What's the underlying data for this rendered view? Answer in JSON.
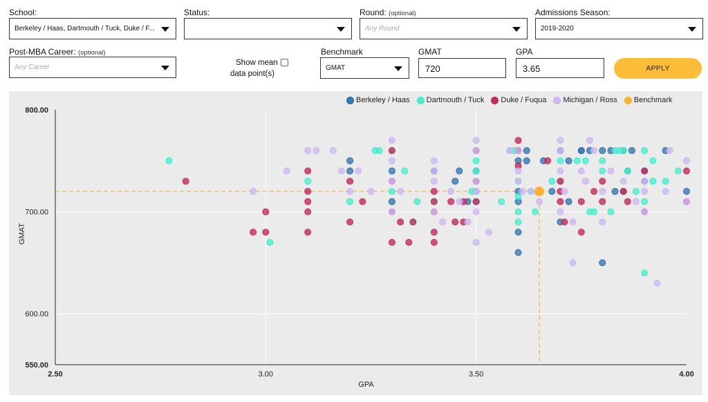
{
  "filters": {
    "school": {
      "label": "School:",
      "value": "Berkeley / Haas, Dartmouth / Tuck, Duke / F..."
    },
    "status": {
      "label": "Status:",
      "value": ""
    },
    "round": {
      "label": "Round:",
      "optional": "(optional)",
      "placeholder": "Any Round"
    },
    "season": {
      "label": "Admissions Season:",
      "value": "2019-2020"
    },
    "career": {
      "label": "Post-MBA Career:",
      "optional": "(optional)",
      "placeholder": "Any Career"
    },
    "show_mean": {
      "line1": "Show mean",
      "line2": "data point(s)"
    },
    "benchmark": {
      "label": "Benchmark",
      "value": "GMAT"
    },
    "gmat": {
      "label": "GMAT",
      "value": "720"
    },
    "gpa": {
      "label": "GPA",
      "value": "3.65"
    },
    "apply_label": "APPLY"
  },
  "colors": {
    "haas": "#1f5f9e",
    "tuck": "#3fe6c3",
    "fuqua": "#c21e58",
    "ross": "#c9b1f2",
    "benchmark": "#fbb034",
    "haas_fill": "#3779b4",
    "tuck_fill": "#47f0cf",
    "fuqua_fill": "#c22c5e",
    "ross_fill": "#cdb9f4"
  },
  "chart_data": {
    "type": "scatter",
    "xlabel": "GPA",
    "ylabel": "GMAT",
    "xlim": [
      2.5,
      4.0
    ],
    "ylim": [
      550,
      800
    ],
    "x_ticks": [
      {
        "value": 2.5,
        "label": "2.50"
      },
      {
        "value": 3.0,
        "label": "3.00"
      },
      {
        "value": 3.5,
        "label": "3.50"
      },
      {
        "value": 4.0,
        "label": "4.00"
      }
    ],
    "y_ticks": [
      {
        "value": 550,
        "label": "550.00"
      },
      {
        "value": 600,
        "label": "600.00"
      },
      {
        "value": 700,
        "label": "700.00"
      },
      {
        "value": 800,
        "label": "800.00"
      }
    ],
    "benchmark": {
      "name": "Benchmark",
      "gpa": 3.65,
      "gmat": 720
    },
    "series": [
      {
        "name": "Berkeley / Haas",
        "key": "haas",
        "points": [
          [
            3.2,
            750
          ],
          [
            3.2,
            740
          ],
          [
            3.3,
            740
          ],
          [
            3.45,
            730
          ],
          [
            3.46,
            740
          ],
          [
            3.5,
            740
          ],
          [
            3.6,
            760
          ],
          [
            3.6,
            750
          ],
          [
            3.62,
            750
          ],
          [
            3.66,
            750
          ],
          [
            3.7,
            760
          ],
          [
            3.72,
            750
          ],
          [
            3.75,
            760
          ],
          [
            3.77,
            760
          ],
          [
            3.8,
            760
          ],
          [
            3.82,
            760
          ],
          [
            3.85,
            760
          ],
          [
            3.83,
            720
          ],
          [
            3.85,
            720
          ],
          [
            3.86,
            740
          ],
          [
            3.9,
            740
          ],
          [
            3.9,
            730
          ],
          [
            3.95,
            760
          ],
          [
            4.0,
            720
          ],
          [
            3.6,
            720
          ],
          [
            3.6,
            710
          ],
          [
            3.62,
            760
          ],
          [
            3.7,
            690
          ],
          [
            3.72,
            710
          ],
          [
            3.68,
            720
          ],
          [
            3.6,
            660
          ],
          [
            3.8,
            650
          ],
          [
            3.5,
            720
          ],
          [
            3.48,
            710
          ],
          [
            3.3,
            710
          ],
          [
            3.4,
            740
          ],
          [
            3.6,
            680
          ],
          [
            3.75,
            760
          ],
          [
            3.87,
            760
          ],
          [
            3.5,
            710
          ]
        ]
      },
      {
        "name": "Dartmouth / Tuck",
        "key": "tuck",
        "points": [
          [
            2.77,
            750
          ],
          [
            3.01,
            670
          ],
          [
            3.1,
            730
          ],
          [
            3.2,
            710
          ],
          [
            3.26,
            760
          ],
          [
            3.27,
            760
          ],
          [
            3.3,
            720
          ],
          [
            3.33,
            740
          ],
          [
            3.35,
            690
          ],
          [
            3.36,
            710
          ],
          [
            3.4,
            710
          ],
          [
            3.49,
            720
          ],
          [
            3.5,
            750
          ],
          [
            3.5,
            740
          ],
          [
            3.5,
            730
          ],
          [
            3.5,
            720
          ],
          [
            3.5,
            710
          ],
          [
            3.56,
            710
          ],
          [
            3.58,
            760
          ],
          [
            3.59,
            760
          ],
          [
            3.6,
            730
          ],
          [
            3.6,
            690
          ],
          [
            3.6,
            715
          ],
          [
            3.63,
            720
          ],
          [
            3.64,
            700
          ],
          [
            3.68,
            730
          ],
          [
            3.7,
            750
          ],
          [
            3.74,
            750
          ],
          [
            3.76,
            750
          ],
          [
            3.77,
            700
          ],
          [
            3.78,
            700
          ],
          [
            3.8,
            750
          ],
          [
            3.8,
            740
          ],
          [
            3.82,
            700
          ],
          [
            3.83,
            760
          ],
          [
            3.84,
            760
          ],
          [
            3.86,
            740
          ],
          [
            3.88,
            720
          ],
          [
            3.9,
            760
          ],
          [
            3.9,
            710
          ],
          [
            3.92,
            750
          ],
          [
            3.9,
            640
          ],
          [
            3.95,
            730
          ],
          [
            3.98,
            740
          ],
          [
            3.92,
            730
          ],
          [
            3.3,
            760
          ],
          [
            3.6,
            700
          ],
          [
            3.5,
            730
          ],
          [
            3.7,
            730
          ],
          [
            3.85,
            760
          ]
        ]
      },
      {
        "name": "Duke / Fuqua",
        "key": "fuqua",
        "points": [
          [
            2.81,
            730
          ],
          [
            2.97,
            680
          ],
          [
            3.0,
            700
          ],
          [
            3.0,
            680
          ],
          [
            3.1,
            740
          ],
          [
            3.1,
            720
          ],
          [
            3.1,
            710
          ],
          [
            3.1,
            700
          ],
          [
            3.1,
            680
          ],
          [
            3.2,
            730
          ],
          [
            3.2,
            690
          ],
          [
            3.23,
            710
          ],
          [
            3.3,
            760
          ],
          [
            3.3,
            730
          ],
          [
            3.3,
            670
          ],
          [
            3.32,
            690
          ],
          [
            3.34,
            670
          ],
          [
            3.35,
            690
          ],
          [
            3.4,
            720
          ],
          [
            3.4,
            710
          ],
          [
            3.4,
            680
          ],
          [
            3.4,
            670
          ],
          [
            3.44,
            710
          ],
          [
            3.45,
            690
          ],
          [
            3.47,
            710
          ],
          [
            3.47,
            690
          ],
          [
            3.5,
            710
          ],
          [
            3.5,
            730
          ],
          [
            3.6,
            770
          ],
          [
            3.6,
            760
          ],
          [
            3.67,
            750
          ],
          [
            3.7,
            730
          ],
          [
            3.7,
            720
          ],
          [
            3.7,
            710
          ],
          [
            3.71,
            690
          ],
          [
            3.75,
            710
          ],
          [
            3.75,
            680
          ],
          [
            3.8,
            730
          ],
          [
            3.8,
            710
          ],
          [
            3.86,
            710
          ],
          [
            3.9,
            740
          ],
          [
            3.9,
            700
          ],
          [
            4.0,
            740
          ],
          [
            4.0,
            710
          ],
          [
            3.78,
            720
          ],
          [
            3.85,
            720
          ],
          [
            3.3,
            700
          ],
          [
            3.5,
            760
          ],
          [
            3.6,
            745
          ],
          [
            3.4,
            700
          ]
        ]
      },
      {
        "name": "Michigan / Ross",
        "key": "ross",
        "points": [
          [
            2.97,
            720
          ],
          [
            3.05,
            740
          ],
          [
            3.1,
            760
          ],
          [
            3.12,
            760
          ],
          [
            3.16,
            760
          ],
          [
            3.18,
            740
          ],
          [
            3.22,
            740
          ],
          [
            3.25,
            720
          ],
          [
            3.3,
            770
          ],
          [
            3.3,
            750
          ],
          [
            3.3,
            700
          ],
          [
            3.32,
            720
          ],
          [
            3.4,
            750
          ],
          [
            3.4,
            740
          ],
          [
            3.4,
            730
          ],
          [
            3.4,
            700
          ],
          [
            3.42,
            690
          ],
          [
            3.44,
            720
          ],
          [
            3.46,
            710
          ],
          [
            3.48,
            690
          ],
          [
            3.5,
            770
          ],
          [
            3.5,
            760
          ],
          [
            3.5,
            730
          ],
          [
            3.5,
            720
          ],
          [
            3.5,
            670
          ],
          [
            3.53,
            680
          ],
          [
            3.58,
            760
          ],
          [
            3.6,
            740
          ],
          [
            3.6,
            730
          ],
          [
            3.61,
            720
          ],
          [
            3.63,
            720
          ],
          [
            3.65,
            710
          ],
          [
            3.7,
            770
          ],
          [
            3.7,
            760
          ],
          [
            3.7,
            740
          ],
          [
            3.71,
            720
          ],
          [
            3.73,
            690
          ],
          [
            3.73,
            650
          ],
          [
            3.75,
            740
          ],
          [
            3.77,
            770
          ],
          [
            3.8,
            720
          ],
          [
            3.8,
            690
          ],
          [
            3.82,
            740
          ],
          [
            3.88,
            710
          ],
          [
            3.9,
            700
          ],
          [
            3.9,
            730
          ],
          [
            3.93,
            630
          ],
          [
            3.96,
            760
          ],
          [
            4.0,
            750
          ],
          [
            4.0,
            710
          ],
          [
            3.95,
            720
          ],
          [
            3.85,
            730
          ],
          [
            3.2,
            720
          ],
          [
            3.3,
            730
          ],
          [
            3.5,
            700
          ],
          [
            3.6,
            760
          ],
          [
            3.76,
            730
          ],
          [
            3.78,
            760
          ],
          [
            3.9,
            720
          ],
          [
            3.7,
            700
          ]
        ]
      }
    ],
    "legend": [
      "Berkeley / Haas",
      "Dartmouth / Tuck",
      "Duke / Fuqua",
      "Michigan / Ross",
      "Benchmark"
    ],
    "grid": true,
    "legend_position": "top-right"
  }
}
